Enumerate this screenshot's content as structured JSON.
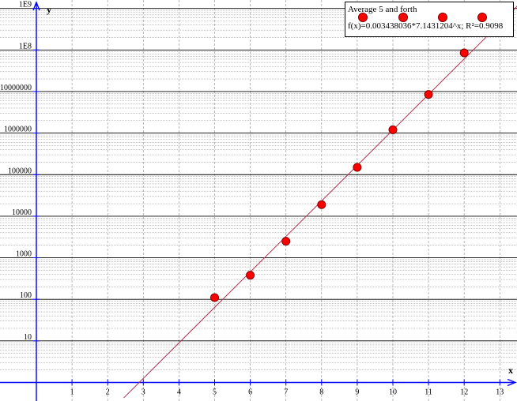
{
  "chart_data": {
    "type": "scatter",
    "title": "",
    "xlabel": "x",
    "ylabel": "y",
    "y_scale": "log",
    "xlim": [
      -1,
      14
    ],
    "ylim": [
      1,
      1000000000
    ],
    "x_ticks": [
      1,
      2,
      3,
      4,
      5,
      6,
      7,
      8,
      9,
      10,
      11,
      12,
      13
    ],
    "x_tick_labels": [
      "1",
      "2",
      "3",
      "4",
      "5",
      "6",
      "7",
      "8",
      "9",
      "10",
      "11",
      "12",
      "13"
    ],
    "y_ticks": [
      10,
      100,
      1000,
      10000,
      100000,
      1000000,
      10000000,
      100000000,
      1000000000
    ],
    "y_tick_labels": [
      "10",
      "100",
      "1000",
      "10000",
      "100000",
      "1000000",
      "10000000",
      "1E8",
      "1E9"
    ],
    "grid": true,
    "legend_position": "top-right",
    "series": [
      {
        "name": "Average 5 and forth",
        "color": "#ff0000",
        "points": [
          {
            "x": 5,
            "y": 110
          },
          {
            "x": 6,
            "y": 380
          },
          {
            "x": 7,
            "y": 2500
          },
          {
            "x": 8,
            "y": 19000
          },
          {
            "x": 9,
            "y": 150000
          },
          {
            "x": 10,
            "y": 1200000
          },
          {
            "x": 11,
            "y": 8500000
          },
          {
            "x": 12,
            "y": 85000000
          }
        ]
      }
    ],
    "trendline": {
      "type": "exponential",
      "a": 0.003438036,
      "b": 7.1431204,
      "color": "#b03050",
      "label": "f(x)=0.003438036*7.1431204^x; R²=0.9098"
    }
  }
}
